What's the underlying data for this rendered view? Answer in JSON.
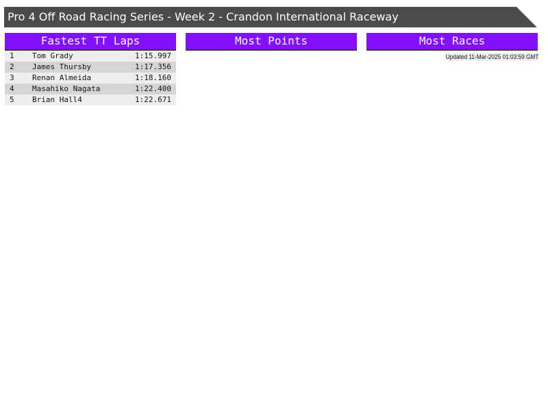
{
  "title": "Pro 4 Off Road Racing Series - Week 2 - Crandon International Raceway",
  "colors": {
    "header_bg": "#4b4b4b",
    "panel_header": "#8410ff"
  },
  "panels": {
    "fastest": {
      "title": "Fastest TT Laps",
      "rows": [
        {
          "pos": "1",
          "name": "Tom Grady",
          "time": "1:15.997"
        },
        {
          "pos": "2",
          "name": "James Thursby",
          "time": "1:17.356"
        },
        {
          "pos": "3",
          "name": "Renan Almeida",
          "time": "1:18.160"
        },
        {
          "pos": "4",
          "name": "Masahiko Nagata",
          "time": "1:22.400"
        },
        {
          "pos": "5",
          "name": "Brian Hall4",
          "time": "1:22.671"
        }
      ]
    },
    "points": {
      "title": "Most Points"
    },
    "races": {
      "title": "Most Races"
    }
  },
  "updated": "Updated 11-Mar-2025 01:03:59 GMT"
}
